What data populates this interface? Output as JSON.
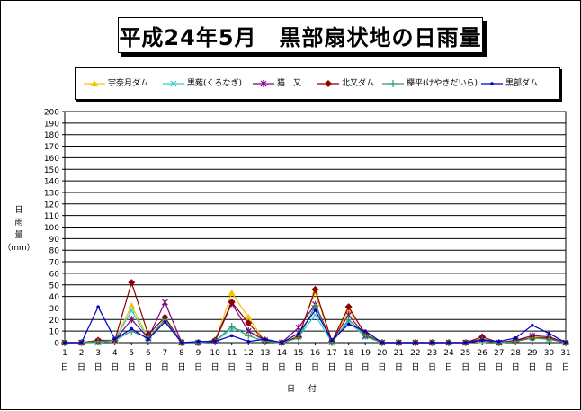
{
  "chart_data": {
    "type": "line",
    "title": "平成24年5月　黒部扇状地の日雨量",
    "ylabel_chars": [
      "日",
      "雨",
      "量",
      "（mm）"
    ],
    "xlabel": "日 付",
    "ylim": [
      0,
      200
    ],
    "ytick_step": 10,
    "categories": [
      "1",
      "2",
      "3",
      "4",
      "5",
      "6",
      "7",
      "8",
      "9",
      "10",
      "11",
      "12",
      "13",
      "14",
      "15",
      "16",
      "17",
      "18",
      "19",
      "20",
      "21",
      "22",
      "23",
      "24",
      "25",
      "26",
      "27",
      "28",
      "29",
      "30",
      "31"
    ],
    "xtick_suffix": "日",
    "grid": true,
    "legend_position": "top",
    "series": [
      {
        "name": "宇奈月ダム",
        "color": "#f5c400",
        "marker": "triangle",
        "values": [
          0,
          0,
          0,
          2,
          32,
          4,
          20,
          0,
          0,
          1,
          43,
          22,
          1,
          0,
          6,
          44,
          0,
          28,
          9,
          0,
          0,
          0,
          0,
          0,
          0,
          2,
          0,
          1,
          5,
          4,
          0
        ]
      },
      {
        "name": "黒薙(くろなぎ)",
        "color": "#33cccc",
        "marker": "x",
        "values": [
          0,
          0,
          0,
          2,
          28,
          3,
          18,
          0,
          0,
          1,
          12,
          10,
          1,
          0,
          5,
          24,
          0,
          18,
          5,
          0,
          0,
          0,
          0,
          0,
          0,
          2,
          0,
          1,
          4,
          3,
          0
        ]
      },
      {
        "name": "猫　又",
        "color": "#800080",
        "marker": "star",
        "values": [
          0,
          0,
          1,
          2,
          20,
          4,
          35,
          0,
          0,
          1,
          34,
          10,
          2,
          0,
          13,
          33,
          1,
          24,
          6,
          0,
          0,
          0,
          0,
          0,
          0,
          3,
          0,
          2,
          6,
          5,
          0
        ]
      },
      {
        "name": "北又ダム",
        "color": "#8b0000",
        "marker": "diamond",
        "values": [
          0,
          0,
          2,
          2,
          52,
          7,
          22,
          0,
          0,
          2,
          35,
          17,
          1,
          0,
          5,
          46,
          1,
          31,
          7,
          0,
          0,
          0,
          0,
          0,
          0,
          5,
          0,
          2,
          4,
          4,
          0
        ]
      },
      {
        "name": "欅平(けやきだいら)",
        "color": "#339966",
        "marker": "plus",
        "values": [
          0,
          0,
          1,
          2,
          10,
          4,
          20,
          0,
          0,
          1,
          14,
          6,
          1,
          0,
          4,
          32,
          0,
          20,
          6,
          0,
          0,
          0,
          0,
          0,
          0,
          2,
          0,
          1,
          4,
          3,
          0
        ]
      },
      {
        "name": "黒部ダム",
        "color": "#0000cc",
        "marker": "dot",
        "values": [
          0,
          0,
          31,
          3,
          12,
          3,
          18,
          0,
          1,
          1,
          6,
          1,
          3,
          0,
          8,
          28,
          2,
          16,
          10,
          0,
          0,
          0,
          0,
          0,
          0,
          2,
          1,
          4,
          15,
          8,
          0
        ]
      }
    ]
  }
}
